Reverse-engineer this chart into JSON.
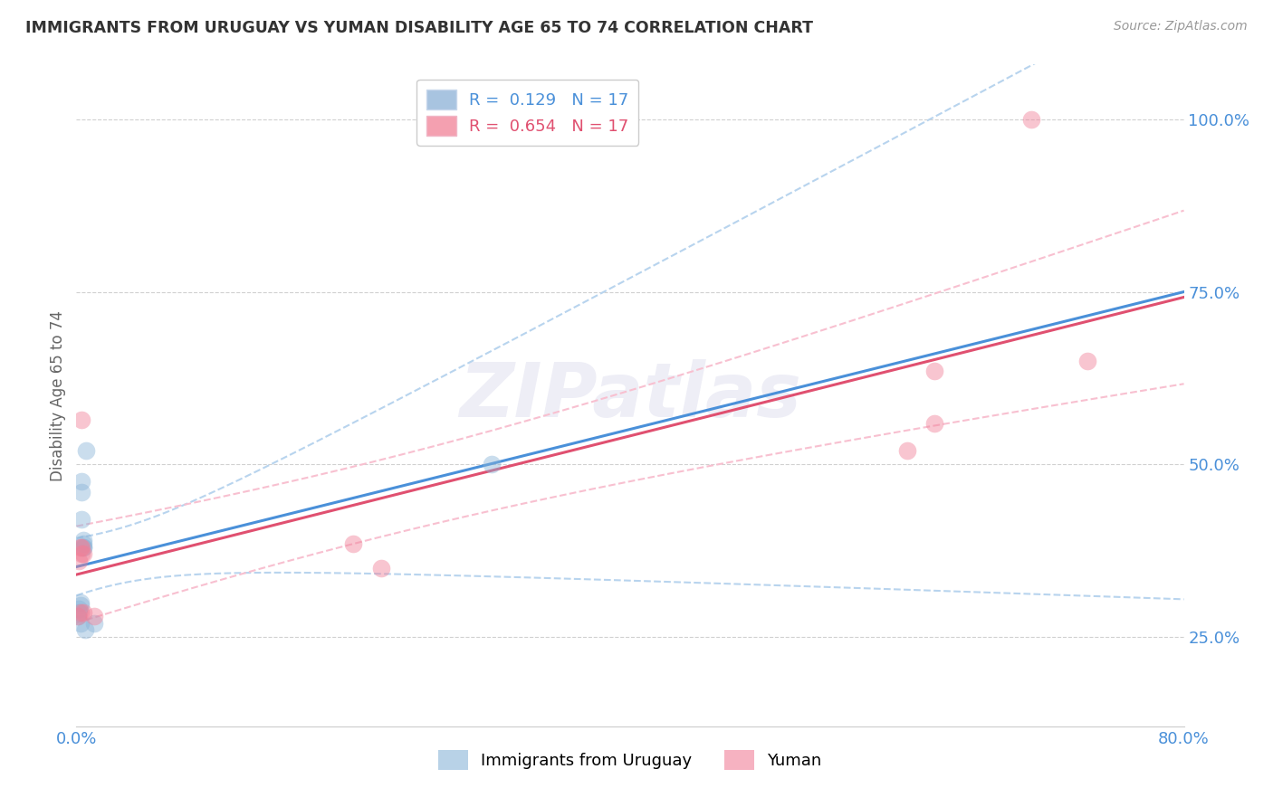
{
  "title": "IMMIGRANTS FROM URUGUAY VS YUMAN DISABILITY AGE 65 TO 74 CORRELATION CHART",
  "source": "Source: ZipAtlas.com",
  "ylabel": "Disability Age 65 to 74",
  "xlim": [
    0.0,
    0.8
  ],
  "ylim": [
    0.12,
    1.08
  ],
  "x_ticks": [
    0.0,
    0.1,
    0.2,
    0.3,
    0.4,
    0.5,
    0.6,
    0.7,
    0.8
  ],
  "x_tick_labels": [
    "0.0%",
    "",
    "",
    "",
    "",
    "",
    "",
    "",
    "80.0%"
  ],
  "y_tick_labels_right": [
    "25.0%",
    "50.0%",
    "75.0%",
    "100.0%"
  ],
  "y_tick_vals_right": [
    0.25,
    0.5,
    0.75,
    1.0
  ],
  "watermark": "ZIPatlas",
  "legend_color1": "#a8c4e0",
  "legend_color2": "#f4a0b0",
  "uruguay_color": "#8ab4d8",
  "yuman_color": "#f08098",
  "trendline_uruguay_color": "#4a90d9",
  "trendline_yuman_color": "#e05070",
  "trendline_conf_color_uruguay": "#b8d4ee",
  "trendline_conf_color_yuman": "#f8c0d0",
  "bg_color": "#ffffff",
  "grid_color": "#d0d0d0",
  "uruguay_x": [
    0.001,
    0.002,
    0.002,
    0.003,
    0.003,
    0.003,
    0.004,
    0.004,
    0.004,
    0.005,
    0.005,
    0.005,
    0.005,
    0.006,
    0.007,
    0.013,
    0.3
  ],
  "uruguay_y": [
    0.28,
    0.285,
    0.29,
    0.3,
    0.295,
    0.27,
    0.46,
    0.475,
    0.42,
    0.38,
    0.38,
    0.385,
    0.39,
    0.26,
    0.52,
    0.27,
    0.5
  ],
  "yuman_x": [
    0.001,
    0.002,
    0.003,
    0.003,
    0.004,
    0.004,
    0.004,
    0.005,
    0.005,
    0.013,
    0.2,
    0.22,
    0.6,
    0.62,
    0.62,
    0.69,
    0.73
  ],
  "yuman_y": [
    0.28,
    0.36,
    0.38,
    0.285,
    0.37,
    0.565,
    0.38,
    0.285,
    0.37,
    0.28,
    0.385,
    0.35,
    0.52,
    0.56,
    0.635,
    1.0,
    0.65
  ],
  "bottom_legend_labels": [
    "Immigrants from Uruguay",
    "Yuman"
  ]
}
